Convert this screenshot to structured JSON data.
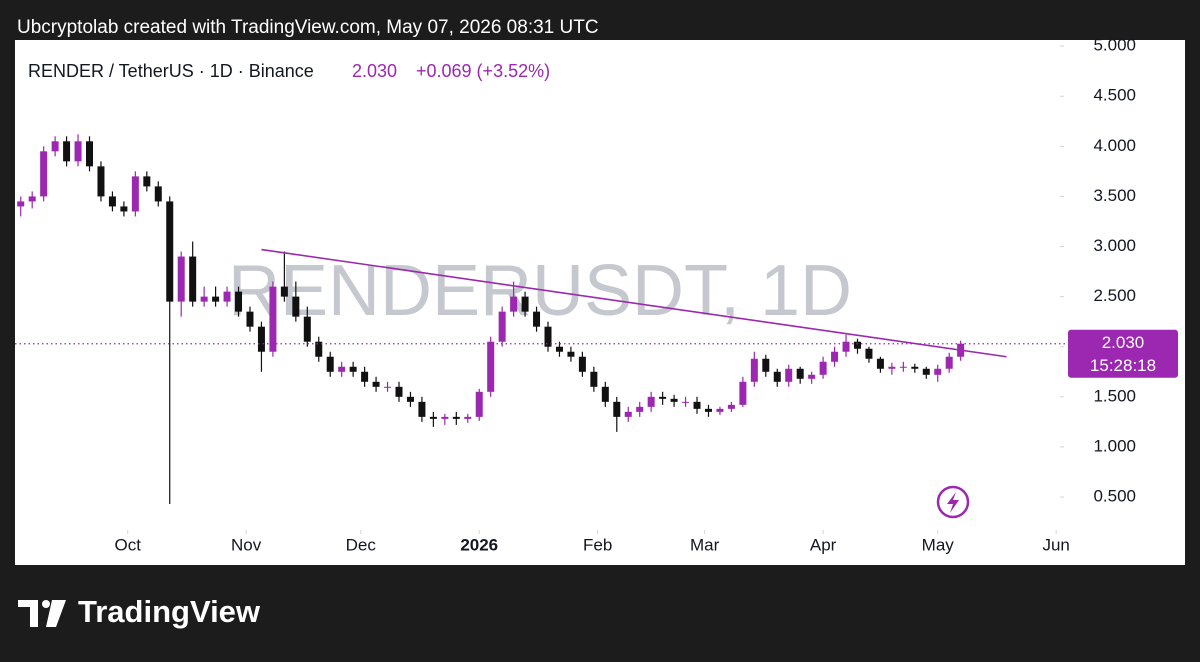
{
  "chart_data": {
    "type": "candlestick",
    "attribution": "Ubcryptolab created with TradingView.com, May 07, 2026 08:31 UTC",
    "title": "RENDER / TetherUS · 1D · Binance",
    "price": "2.030",
    "change": "+0.069 (+3.52%)",
    "watermark": "RENDERUSDT, 1D",
    "brand": "TradingView",
    "countdown": "15:28:18",
    "last_price": {
      "value": 2.03,
      "label": "2.030"
    },
    "up_color": "#9c27b0",
    "down_color": "#111111",
    "xlim": [
      -1.5,
      272
    ],
    "ylim": [
      0.171,
      5.061
    ],
    "xticks": [
      {
        "value": 28,
        "label": "Oct"
      },
      {
        "value": 59,
        "label": "Nov"
      },
      {
        "value": 89,
        "label": "Dec"
      },
      {
        "value": 120,
        "label": "2026"
      },
      {
        "value": 151,
        "label": "Feb"
      },
      {
        "value": 179,
        "label": "Mar"
      },
      {
        "value": 210,
        "label": "Apr"
      },
      {
        "value": 240,
        "label": "May"
      },
      {
        "value": 271,
        "label": "Jun"
      }
    ],
    "yticks": [
      {
        "value": 0.5,
        "label": "0.500"
      },
      {
        "value": 1,
        "label": "1.000"
      },
      {
        "value": 1.5,
        "label": "1.500"
      },
      {
        "value": 2,
        "label": "2.000"
      },
      {
        "value": 2.5,
        "label": "2.500"
      },
      {
        "value": 3,
        "label": "3.000"
      },
      {
        "value": 3.5,
        "label": "3.500"
      },
      {
        "value": 4,
        "label": "4.000"
      },
      {
        "value": 4.5,
        "label": "4.500"
      },
      {
        "value": 5,
        "label": "5.000"
      }
    ],
    "trend_line": {
      "x": [
        63,
        258
      ],
      "y": [
        2.97,
        1.9
      ]
    },
    "x": [
      0,
      3,
      6,
      9,
      12,
      15,
      18,
      21,
      24,
      27,
      30,
      33,
      36,
      39,
      42,
      45,
      48,
      51,
      54,
      57,
      60,
      63,
      66,
      69,
      72,
      75,
      78,
      81,
      84,
      87,
      90,
      93,
      96,
      99,
      102,
      105,
      108,
      111,
      114,
      117,
      120,
      123,
      126,
      129,
      132,
      135,
      138,
      141,
      144,
      147,
      150,
      153,
      156,
      159,
      162,
      165,
      168,
      171,
      174,
      177,
      180,
      183,
      186,
      189,
      192,
      195,
      198,
      201,
      204,
      207,
      210,
      213,
      216,
      219,
      222,
      225,
      228,
      231,
      234,
      237,
      240,
      243,
      246
    ],
    "open": [
      3.4,
      3.45,
      3.5,
      3.95,
      4.05,
      3.85,
      4.05,
      3.8,
      3.5,
      3.4,
      3.35,
      3.7,
      3.6,
      3.45,
      2.45,
      2.9,
      2.45,
      2.5,
      2.45,
      2.55,
      2.35,
      2.2,
      1.95,
      2.6,
      2.5,
      2.3,
      2.05,
      1.9,
      1.75,
      1.8,
      1.75,
      1.65,
      1.6,
      1.6,
      1.5,
      1.45,
      1.3,
      1.28,
      1.3,
      1.28,
      1.3,
      1.55,
      2.05,
      2.35,
      2.5,
      2.35,
      2.2,
      2.0,
      1.95,
      1.9,
      1.75,
      1.6,
      1.45,
      1.3,
      1.35,
      1.4,
      1.5,
      1.48,
      1.45,
      1.45,
      1.38,
      1.35,
      1.38,
      1.42,
      1.65,
      1.88,
      1.75,
      1.65,
      1.78,
      1.68,
      1.72,
      1.85,
      1.95,
      2.05,
      1.98,
      1.88,
      1.78,
      1.8,
      1.8,
      1.78,
      1.72,
      1.78,
      1.9
    ],
    "high": [
      3.5,
      3.55,
      4.0,
      4.1,
      4.1,
      4.12,
      4.1,
      3.85,
      3.55,
      3.45,
      3.75,
      3.75,
      3.65,
      3.5,
      2.95,
      3.05,
      2.6,
      2.6,
      2.6,
      2.6,
      2.4,
      2.25,
      2.65,
      2.95,
      2.65,
      2.4,
      2.1,
      1.95,
      1.85,
      1.85,
      1.8,
      1.7,
      1.65,
      1.65,
      1.55,
      1.5,
      1.35,
      1.33,
      1.35,
      1.33,
      1.58,
      2.1,
      2.4,
      2.65,
      2.55,
      2.4,
      2.25,
      2.05,
      2.0,
      1.95,
      1.8,
      1.65,
      1.5,
      1.4,
      1.45,
      1.55,
      1.55,
      1.52,
      1.5,
      1.5,
      1.42,
      1.4,
      1.45,
      1.7,
      1.95,
      1.92,
      1.78,
      1.82,
      1.8,
      1.75,
      1.9,
      2.0,
      2.12,
      2.08,
      2.0,
      1.9,
      1.84,
      1.85,
      1.83,
      1.8,
      1.82,
      1.94,
      2.06
    ],
    "low": [
      3.3,
      3.38,
      3.45,
      3.9,
      3.8,
      3.8,
      3.75,
      3.45,
      3.35,
      3.3,
      3.3,
      3.55,
      3.4,
      0.43,
      2.3,
      2.4,
      2.4,
      2.4,
      2.4,
      2.3,
      2.15,
      1.75,
      1.9,
      2.45,
      2.25,
      2.0,
      1.85,
      1.7,
      1.7,
      1.7,
      1.6,
      1.55,
      1.55,
      1.45,
      1.4,
      1.25,
      1.2,
      1.22,
      1.22,
      1.24,
      1.26,
      1.5,
      2.0,
      2.3,
      2.3,
      2.15,
      1.95,
      1.9,
      1.85,
      1.7,
      1.55,
      1.4,
      1.15,
      1.25,
      1.3,
      1.35,
      1.42,
      1.4,
      1.4,
      1.33,
      1.3,
      1.32,
      1.35,
      1.4,
      1.6,
      1.7,
      1.6,
      1.6,
      1.63,
      1.63,
      1.68,
      1.8,
      1.9,
      1.93,
      1.84,
      1.74,
      1.72,
      1.75,
      1.74,
      1.68,
      1.65,
      1.74,
      1.86
    ],
    "close": [
      3.45,
      3.5,
      3.95,
      4.05,
      3.85,
      4.05,
      3.8,
      3.5,
      3.4,
      3.35,
      3.7,
      3.6,
      3.45,
      2.45,
      2.9,
      2.45,
      2.5,
      2.45,
      2.55,
      2.35,
      2.2,
      1.95,
      2.6,
      2.5,
      2.3,
      2.05,
      1.9,
      1.75,
      1.8,
      1.75,
      1.65,
      1.6,
      1.6,
      1.5,
      1.45,
      1.3,
      1.28,
      1.3,
      1.28,
      1.3,
      1.55,
      2.05,
      2.35,
      2.5,
      2.35,
      2.2,
      2.0,
      1.95,
      1.9,
      1.75,
      1.6,
      1.45,
      1.3,
      1.35,
      1.4,
      1.5,
      1.48,
      1.45,
      1.45,
      1.38,
      1.35,
      1.38,
      1.42,
      1.65,
      1.88,
      1.75,
      1.65,
      1.78,
      1.68,
      1.72,
      1.85,
      1.95,
      2.05,
      1.98,
      1.88,
      1.78,
      1.8,
      1.8,
      1.78,
      1.72,
      1.78,
      1.9,
      2.03
    ]
  }
}
